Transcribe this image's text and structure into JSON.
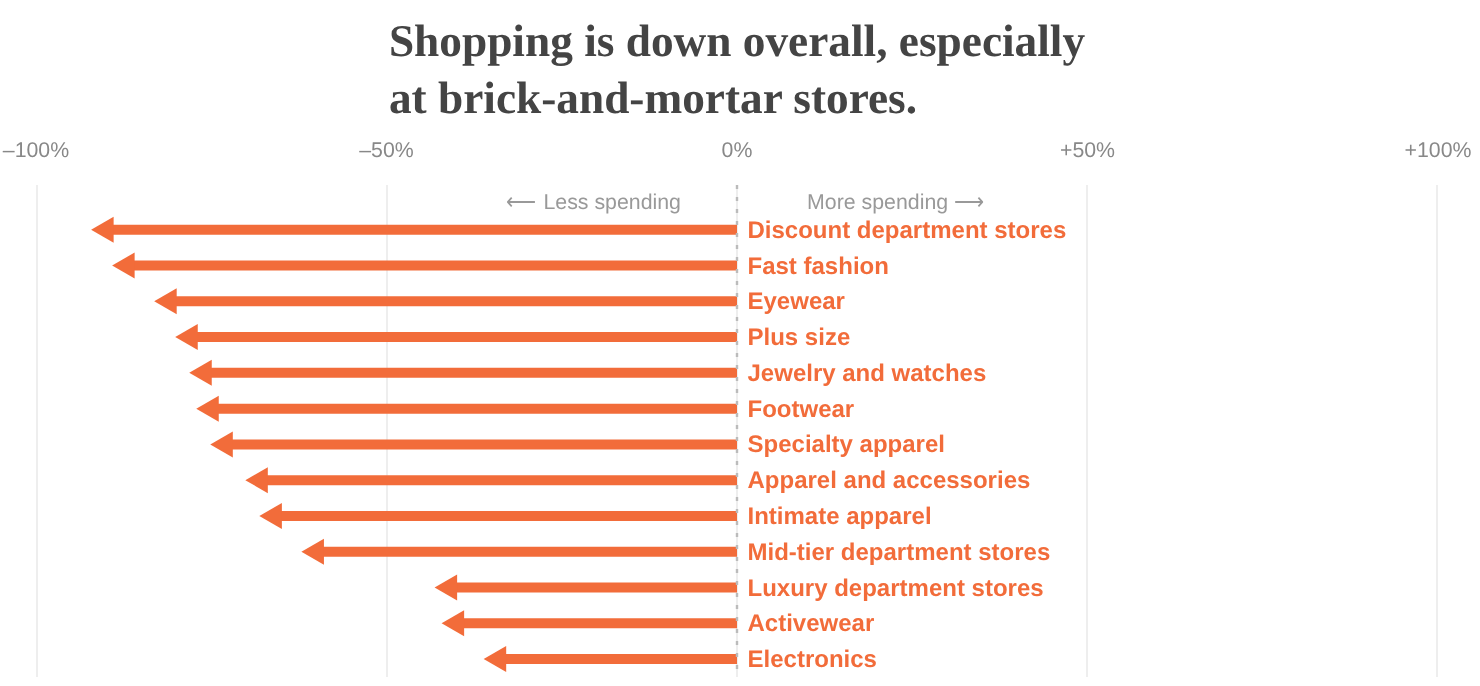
{
  "chart_data": {
    "type": "lollipop",
    "orientation": "horizontal",
    "marker": "triangle",
    "title": "Shopping is down overall, especially at brick-and-mortar stores.",
    "categories": [
      "Discount department stores",
      "Fast fashion",
      "Eyewear",
      "Plus size",
      "Jewelry and watches",
      "Footwear",
      "Specialty apparel",
      "Apparel and accessories",
      "Intimate apparel",
      "Mid-tier department stores",
      "Luxury department stores",
      "Activewear",
      "Electronics"
    ],
    "values": [
      -90,
      -87,
      -81,
      -78,
      -76,
      -75,
      -73,
      -68,
      -66,
      -60,
      -41,
      -40,
      -34
    ],
    "color": "#f26c3a",
    "xlim": [
      -101,
      101
    ],
    "xticks": [
      {
        "value": -100,
        "label": "–100%"
      },
      {
        "value": -50,
        "label": "–50%"
      },
      {
        "value": 0,
        "label": "0%"
      },
      {
        "value": 50,
        "label": "+50%"
      },
      {
        "value": 100,
        "label": "+100%"
      }
    ],
    "grid": "x",
    "ref_lines": [
      {
        "axis": "x",
        "value": 0,
        "label": null,
        "line_style": "dotted",
        "color": "#bbbbbb"
      }
    ],
    "annotations": [
      "⟵ Less spending",
      "More spending ⟶"
    ]
  }
}
